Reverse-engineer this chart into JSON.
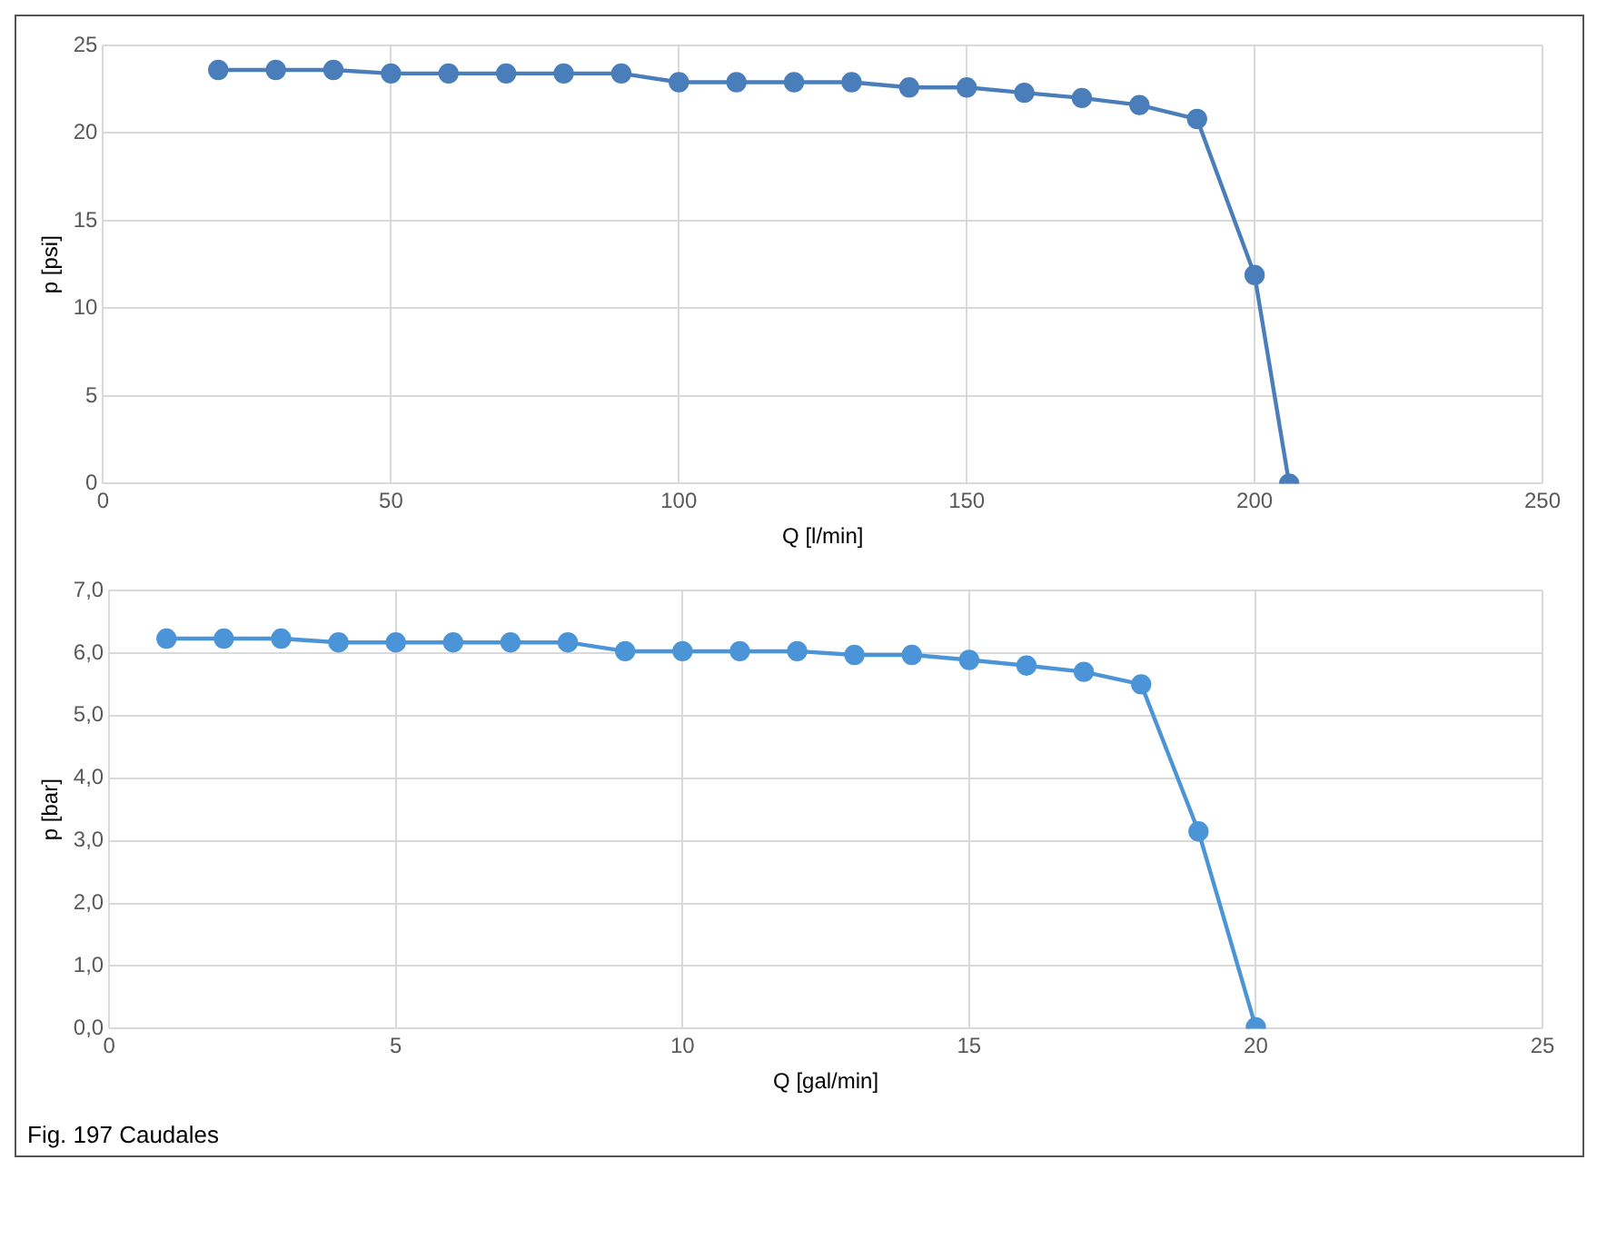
{
  "chart_data": [
    {
      "type": "line",
      "xlabel": "Q [l/min]",
      "ylabel": "p [psi]",
      "x": [
        20,
        30,
        40,
        50,
        60,
        70,
        80,
        90,
        100,
        110,
        120,
        130,
        140,
        150,
        160,
        170,
        180,
        190,
        200,
        206
      ],
      "series": [
        {
          "color": "#4a7ebb",
          "values": [
            23.6,
            23.6,
            23.6,
            23.4,
            23.4,
            23.4,
            23.4,
            23.4,
            22.9,
            22.9,
            22.9,
            22.9,
            22.6,
            22.6,
            22.3,
            22.0,
            21.6,
            20.8,
            11.9,
            0
          ]
        }
      ],
      "xlim": [
        0,
        250
      ],
      "xticks": [
        0,
        50,
        100,
        150,
        200,
        250
      ],
      "ylim": [
        0,
        25
      ],
      "yticks": [
        0,
        5,
        10,
        15,
        20,
        25
      ],
      "grid": true,
      "marker": "circle",
      "legend": false
    },
    {
      "type": "line",
      "xlabel": "Q [gal/min]",
      "ylabel": "p [bar]",
      "x": [
        1,
        2,
        3,
        4,
        5,
        6,
        7,
        8,
        9,
        10,
        11,
        12,
        13,
        14,
        15,
        16,
        17,
        18,
        19,
        20
      ],
      "series": [
        {
          "color": "#4b94d8",
          "values": [
            6.23,
            6.23,
            6.23,
            6.17,
            6.17,
            6.17,
            6.17,
            6.17,
            6.03,
            6.03,
            6.03,
            6.03,
            5.97,
            5.97,
            5.89,
            5.8,
            5.7,
            5.5,
            3.15,
            0.02
          ]
        }
      ],
      "xlim": [
        0,
        25
      ],
      "xticks": [
        0,
        5,
        10,
        15,
        20,
        25
      ],
      "ylim": [
        0,
        7
      ],
      "yticks": [
        {
          "value": 0,
          "label": "0,0"
        },
        {
          "value": 1,
          "label": "1,0"
        },
        {
          "value": 2,
          "label": "2,0"
        },
        {
          "value": 3,
          "label": "3,0"
        },
        {
          "value": 4,
          "label": "4,0"
        },
        {
          "value": 5,
          "label": "5,0"
        },
        {
          "value": 6,
          "label": "6,0"
        },
        {
          "value": 7,
          "label": "7,0"
        }
      ],
      "grid": true,
      "marker": "circle",
      "legend": false,
      "annotations": [
        "Fig. 197 Caudales"
      ]
    }
  ]
}
